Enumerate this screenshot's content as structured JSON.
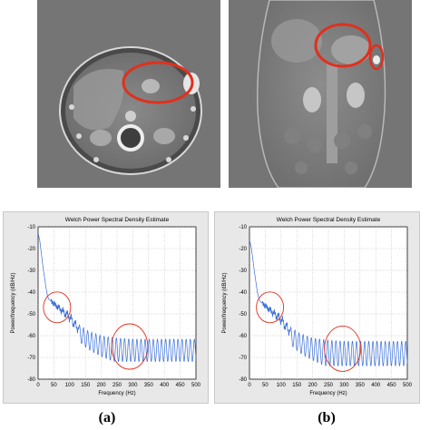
{
  "captions": {
    "a": "(a)",
    "b": "(b)"
  },
  "colors": {
    "annotation": "#e0301e",
    "series": "#3a6fd8",
    "ct_background": "#757575"
  },
  "ct_images": [
    {
      "view": "axial",
      "circled_regions": 1
    },
    {
      "view": "coronal",
      "circled_regions": 2
    }
  ],
  "chart_data": [
    {
      "type": "line",
      "title": "Welch Power Spectral Density Estimate",
      "xlabel": "Frequency (Hz)",
      "ylabel": "Power/frequency (dB/Hz)",
      "xlim": [
        0,
        500
      ],
      "ylim": [
        -80,
        -10
      ],
      "xticks": [
        "0",
        "50",
        "100",
        "150",
        "200",
        "250",
        "300",
        "350",
        "400",
        "450",
        "500"
      ],
      "yticks": [
        "-10",
        "-20",
        "-30",
        "-40",
        "-50",
        "-60",
        "-70",
        "-80"
      ],
      "grid": true,
      "series": [
        {
          "color": "#3a6fd8",
          "x": [
            0,
            5,
            10,
            15,
            20,
            25,
            30,
            35,
            40,
            50,
            60,
            70,
            80,
            90,
            100,
            110,
            120,
            140,
            160,
            180,
            200,
            250,
            300,
            350,
            400,
            450,
            500
          ],
          "y": [
            -13,
            -16,
            -22,
            -28,
            -33,
            -38,
            -42,
            -43.5,
            -44,
            -45,
            -46,
            -47,
            -48,
            -49,
            -50,
            -52,
            -54,
            -56,
            -58,
            -59,
            -60,
            -61,
            -61.5,
            -61.5,
            -61.5,
            -61.5,
            -61.5
          ],
          "oscillation_low": -72
        }
      ],
      "annotations": [
        {
          "shape": "ellipse",
          "center": [
            60,
            -47
          ]
        },
        {
          "shape": "ellipse",
          "center": [
            290,
            -65
          ]
        }
      ]
    },
    {
      "type": "line",
      "title": "Welch Power Spectral Density Estimate",
      "xlabel": "Frequency (Hz)",
      "ylabel": "Power/frequency (dB/Hz)",
      "xlim": [
        0,
        500
      ],
      "ylim": [
        -80,
        -10
      ],
      "xticks": [
        "0",
        "50",
        "100",
        "150",
        "200",
        "250",
        "300",
        "350",
        "400",
        "450",
        "500"
      ],
      "yticks": [
        "-10",
        "-20",
        "-30",
        "-40",
        "-50",
        "-60",
        "-70",
        "-80"
      ],
      "grid": true,
      "series": [
        {
          "color": "#3a6fd8",
          "x": [
            0,
            5,
            10,
            15,
            20,
            25,
            30,
            35,
            40,
            50,
            60,
            70,
            80,
            90,
            100,
            110,
            120,
            140,
            160,
            180,
            200,
            250,
            300,
            350,
            400,
            450,
            500
          ],
          "y": [
            -16,
            -19,
            -24,
            -30,
            -35,
            -40,
            -43,
            -44.5,
            -45,
            -46,
            -47,
            -48,
            -49,
            -50,
            -51,
            -53,
            -55,
            -57,
            -59,
            -60,
            -61,
            -62,
            -62.5,
            -62.5,
            -62.5,
            -62.5,
            -62.5
          ],
          "oscillation_low": -74
        }
      ],
      "annotations": [
        {
          "shape": "ellipse",
          "center": [
            65,
            -47
          ]
        },
        {
          "shape": "ellipse",
          "center": [
            295,
            -66
          ]
        }
      ]
    }
  ]
}
